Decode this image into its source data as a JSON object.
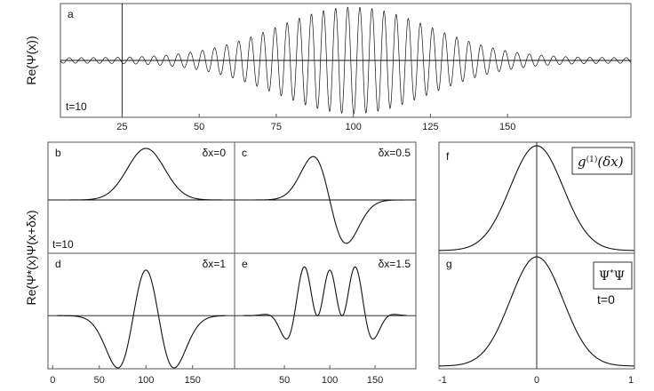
{
  "chart_data": [
    {
      "id": "a",
      "type": "line",
      "panel_label": "a",
      "time_label": "t=10",
      "ylabel": "Re(Ψ(x))",
      "xlim": [
        5,
        190
      ],
      "ylim": [
        -1,
        1
      ],
      "xticks": [
        25,
        50,
        75,
        100,
        125,
        150
      ],
      "vertical_marker_x": 25,
      "envelope": {
        "center": 100,
        "sigma": 25,
        "amplitude": 0.95,
        "wavenumber": 1.6,
        "baseline_amplitude": 0.05
      }
    },
    {
      "id": "b",
      "type": "line",
      "panel_label": "b",
      "shift_label": "δx=0",
      "time_label": "t=10",
      "xlim": [
        -5,
        195
      ],
      "ylim": [
        -1.1,
        1.1
      ],
      "curve": {
        "center": 100,
        "sigma": 20,
        "mode": 0
      }
    },
    {
      "id": "c",
      "type": "line",
      "panel_label": "c",
      "shift_label": "δx=0.5",
      "xlim": [
        -5,
        195
      ],
      "ylim": [
        -1.1,
        1.1
      ],
      "curve": {
        "center": 100,
        "sigma": 20,
        "mode": 0.5
      }
    },
    {
      "id": "d",
      "type": "line",
      "panel_label": "d",
      "shift_label": "δx=1",
      "xlim": [
        -5,
        195
      ],
      "ylim": [
        -1.1,
        1.1
      ],
      "curve": {
        "center": 100,
        "sigma": 20,
        "mode": 1
      }
    },
    {
      "id": "e",
      "type": "line",
      "panel_label": "e",
      "shift_label": "δx=1.5",
      "xlim": [
        -5,
        195
      ],
      "ylim": [
        -1.1,
        1.1
      ],
      "curve": {
        "center": 100,
        "sigma": 20,
        "mode": 1.5
      }
    },
    {
      "id": "f",
      "type": "line",
      "panel_label": "f",
      "legend": "g(1)(δx)",
      "xlim": [
        -1,
        1
      ],
      "ylim": [
        0,
        1
      ],
      "curve": {
        "center": 0,
        "sigma": 0.27
      }
    },
    {
      "id": "g",
      "type": "line",
      "panel_label": "g",
      "legend": "Ψ*Ψ",
      "time_label": "t=0",
      "xlim": [
        -1,
        1
      ],
      "ylim": [
        0,
        1
      ],
      "curve": {
        "center": 0,
        "sigma": 0.27
      }
    }
  ],
  "left_ylabel": "Re(Ψ*(x)Ψ(x+δx)",
  "bottom_xticks_left": [
    0,
    50,
    100,
    150
  ],
  "bottom_xticks_right": [
    -1,
    0,
    1
  ]
}
